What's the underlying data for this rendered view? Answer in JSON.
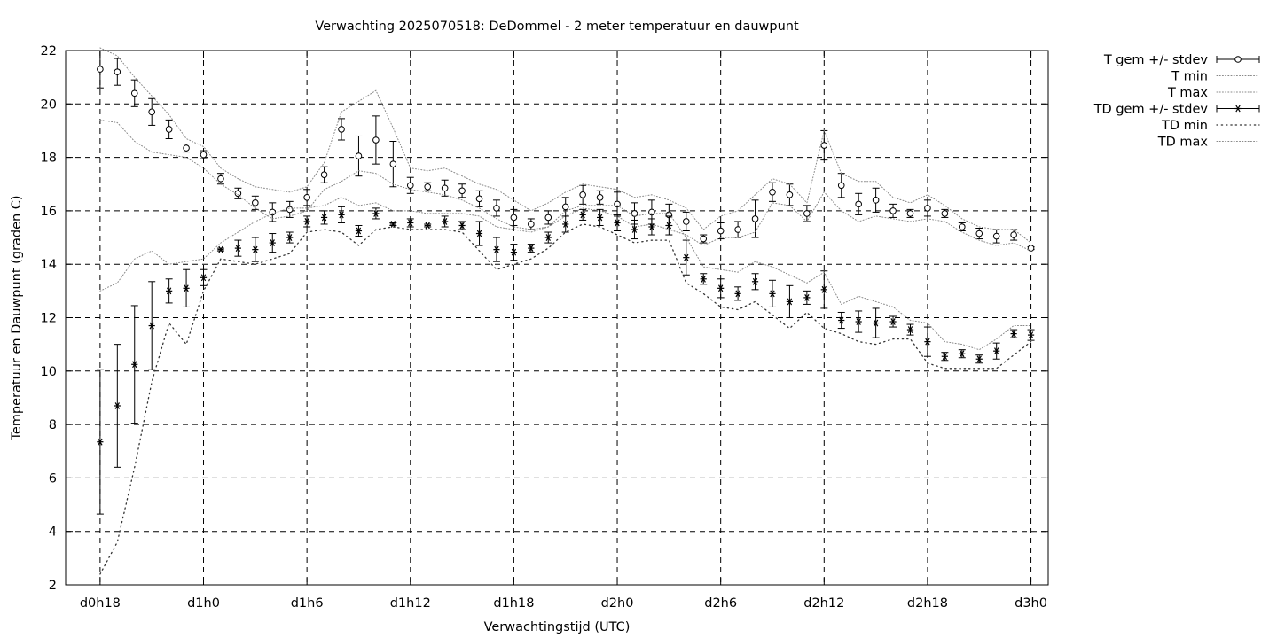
{
  "chart_data": {
    "type": "line",
    "title": "Verwachting 2025070518: DeDommel - 2 meter temperatuur en dauwpunt",
    "xlabel": "Verwachtingstijd (UTC)",
    "ylabel": "Temperatuur en Dauwpunt (graden C)",
    "ylim": [
      2,
      22
    ],
    "xlim": [
      16,
      73
    ],
    "grid": true,
    "legend_position": "right",
    "x_ticks": [
      {
        "x": 18,
        "label": "d0h18"
      },
      {
        "x": 24,
        "label": "d1h0"
      },
      {
        "x": 30,
        "label": "d1h6"
      },
      {
        "x": 36,
        "label": "d1h12"
      },
      {
        "x": 42,
        "label": "d1h18"
      },
      {
        "x": 48,
        "label": "d2h0"
      },
      {
        "x": 54,
        "label": "d2h6"
      },
      {
        "x": 60,
        "label": "d2h12"
      },
      {
        "x": 66,
        "label": "d2h18"
      },
      {
        "x": 72,
        "label": "d3h0"
      }
    ],
    "y_ticks": [
      2,
      4,
      6,
      8,
      10,
      12,
      14,
      16,
      18,
      20,
      22
    ],
    "series": [
      {
        "name": "T gem +/- stdev",
        "style": "errorbar-circle",
        "x": [
          18,
          19,
          20,
          21,
          22,
          23,
          24,
          25,
          26,
          27,
          28,
          29,
          30,
          31,
          32,
          33,
          34,
          35,
          36,
          37,
          38,
          39,
          40,
          41,
          42,
          43,
          44,
          45,
          46,
          47,
          48,
          49,
          50,
          51,
          52,
          53,
          54,
          55,
          56,
          57,
          58,
          59,
          60,
          61,
          62,
          63,
          64,
          65,
          66,
          67,
          68,
          69,
          70,
          71,
          72
        ],
        "y": [
          21.3,
          21.2,
          20.4,
          19.7,
          19.05,
          18.35,
          18.1,
          17.2,
          16.65,
          16.3,
          15.95,
          16.05,
          16.5,
          17.35,
          19.05,
          18.05,
          18.65,
          17.75,
          16.95,
          16.9,
          16.85,
          16.75,
          16.45,
          16.1,
          15.75,
          15.5,
          15.75,
          16.15,
          16.6,
          16.5,
          16.25,
          15.9,
          15.95,
          15.85,
          15.6,
          14.95,
          15.25,
          15.3,
          15.7,
          16.7,
          16.6,
          15.9,
          18.45,
          16.95,
          16.25,
          16.4,
          16.0,
          15.9,
          16.1,
          15.9,
          15.4,
          15.15,
          15.05,
          15.1,
          14.6
        ],
        "stdev": [
          0.7,
          0.5,
          0.5,
          0.5,
          0.35,
          0.15,
          0.15,
          0.2,
          0.2,
          0.25,
          0.35,
          0.3,
          0.3,
          0.3,
          0.4,
          0.75,
          0.9,
          0.85,
          0.3,
          0.15,
          0.3,
          0.25,
          0.3,
          0.3,
          0.3,
          0.2,
          0.25,
          0.35,
          0.35,
          0.25,
          0.45,
          0.4,
          0.45,
          0.4,
          0.35,
          0.15,
          0.3,
          0.3,
          0.7,
          0.35,
          0.4,
          0.3,
          0.55,
          0.45,
          0.4,
          0.45,
          0.25,
          0.15,
          0.3,
          0.15,
          0.15,
          0.2,
          0.25,
          0.2,
          0.05
        ]
      },
      {
        "name": "T min",
        "style": "dotted",
        "x": [
          18,
          19,
          20,
          21,
          22,
          23,
          24,
          25,
          26,
          27,
          28,
          29,
          30,
          31,
          32,
          33,
          34,
          35,
          36,
          37,
          38,
          39,
          40,
          41,
          42,
          43,
          44,
          45,
          46,
          47,
          48,
          49,
          50,
          51,
          52,
          53,
          54,
          55,
          56,
          57,
          58,
          59,
          60,
          61,
          62,
          63,
          64,
          65,
          66,
          67,
          68,
          69,
          70,
          71,
          72
        ],
        "y": [
          19.4,
          19.3,
          18.6,
          18.2,
          18.1,
          18.0,
          17.6,
          17.0,
          16.6,
          16.1,
          15.7,
          15.8,
          16.0,
          16.8,
          17.1,
          17.5,
          17.4,
          17.0,
          16.8,
          16.7,
          16.6,
          16.4,
          16.1,
          15.7,
          15.4,
          15.3,
          15.4,
          15.8,
          16.1,
          16.0,
          15.8,
          15.4,
          15.5,
          15.3,
          15.1,
          14.7,
          15.0,
          15.0,
          15.2,
          16.3,
          16.2,
          15.6,
          16.7,
          16.0,
          15.6,
          15.8,
          15.7,
          15.6,
          15.7,
          15.6,
          15.2,
          14.9,
          14.7,
          14.8,
          14.5
        ]
      },
      {
        "name": "T max",
        "style": "dotted",
        "x": [
          18,
          19,
          20,
          21,
          22,
          23,
          24,
          25,
          26,
          27,
          28,
          29,
          30,
          31,
          32,
          33,
          34,
          35,
          36,
          37,
          38,
          39,
          40,
          41,
          42,
          43,
          44,
          45,
          46,
          47,
          48,
          49,
          50,
          51,
          52,
          53,
          54,
          55,
          56,
          57,
          58,
          59,
          60,
          61,
          62,
          63,
          64,
          65,
          66,
          67,
          68,
          69,
          70,
          71,
          72
        ],
        "y": [
          22.1,
          21.8,
          21.0,
          20.3,
          19.6,
          18.7,
          18.4,
          17.6,
          17.2,
          16.9,
          16.8,
          16.7,
          16.9,
          17.8,
          19.7,
          20.1,
          20.5,
          19.1,
          17.6,
          17.5,
          17.6,
          17.3,
          17.0,
          16.8,
          16.4,
          16.0,
          16.3,
          16.7,
          17.0,
          16.9,
          16.8,
          16.5,
          16.6,
          16.4,
          16.1,
          15.3,
          15.8,
          16.0,
          16.6,
          17.2,
          17.0,
          16.3,
          19.0,
          17.4,
          17.1,
          17.1,
          16.5,
          16.3,
          16.6,
          16.2,
          15.7,
          15.4,
          15.3,
          15.3,
          14.8
        ]
      },
      {
        "name": "TD gem +/- stdev",
        "style": "errorbar-star",
        "x": [
          18,
          19,
          20,
          21,
          22,
          23,
          24,
          25,
          26,
          27,
          28,
          29,
          30,
          31,
          32,
          33,
          34,
          35,
          36,
          37,
          38,
          39,
          40,
          41,
          42,
          43,
          44,
          45,
          46,
          47,
          48,
          49,
          50,
          51,
          52,
          53,
          54,
          55,
          56,
          57,
          58,
          59,
          60,
          61,
          62,
          63,
          64,
          65,
          66,
          67,
          68,
          69,
          70,
          71,
          72
        ],
        "y": [
          7.35,
          8.7,
          10.25,
          11.7,
          13.0,
          13.1,
          13.5,
          14.55,
          14.6,
          14.55,
          14.8,
          15.0,
          15.6,
          15.75,
          15.85,
          15.25,
          15.9,
          15.5,
          15.55,
          15.45,
          15.6,
          15.45,
          15.15,
          14.55,
          14.45,
          14.6,
          15.0,
          15.5,
          15.85,
          15.75,
          15.55,
          15.3,
          15.4,
          15.45,
          14.25,
          13.45,
          13.1,
          12.9,
          13.35,
          12.9,
          12.6,
          12.75,
          13.05,
          11.9,
          11.85,
          11.8,
          11.85,
          11.55,
          11.1,
          10.55,
          10.65,
          10.45,
          10.75,
          11.4,
          11.35
        ],
        "stdev": [
          2.7,
          2.3,
          2.2,
          1.65,
          0.45,
          0.7,
          0.3,
          0.05,
          0.3,
          0.45,
          0.35,
          0.2,
          0.2,
          0.25,
          0.3,
          0.2,
          0.2,
          0.05,
          0.15,
          0.05,
          0.2,
          0.15,
          0.45,
          0.45,
          0.3,
          0.15,
          0.2,
          0.3,
          0.2,
          0.3,
          0.3,
          0.35,
          0.3,
          0.35,
          0.65,
          0.2,
          0.35,
          0.25,
          0.3,
          0.5,
          0.6,
          0.25,
          0.7,
          0.3,
          0.4,
          0.55,
          0.2,
          0.2,
          0.55,
          0.15,
          0.15,
          0.15,
          0.3,
          0.15,
          0.2
        ]
      },
      {
        "name": "TD min",
        "style": "dotted-sparse",
        "x": [
          18,
          19,
          20,
          21,
          22,
          23,
          24,
          25,
          26,
          27,
          28,
          29,
          30,
          31,
          32,
          33,
          34,
          35,
          36,
          37,
          38,
          39,
          40,
          41,
          42,
          43,
          44,
          45,
          46,
          47,
          48,
          49,
          50,
          51,
          52,
          53,
          54,
          55,
          56,
          57,
          58,
          59,
          60,
          61,
          62,
          63,
          64,
          65,
          66,
          67,
          68,
          69,
          70,
          71,
          72
        ],
        "y": [
          2.4,
          3.6,
          6.4,
          9.6,
          11.8,
          11.0,
          13.0,
          14.2,
          14.1,
          14.0,
          14.2,
          14.4,
          15.2,
          15.3,
          15.2,
          14.7,
          15.3,
          15.4,
          15.3,
          15.3,
          15.3,
          15.2,
          14.5,
          13.8,
          14.0,
          14.2,
          14.6,
          15.2,
          15.5,
          15.4,
          15.1,
          14.8,
          14.9,
          14.9,
          13.3,
          12.9,
          12.4,
          12.3,
          12.6,
          12.1,
          11.6,
          12.2,
          11.6,
          11.4,
          11.1,
          11.0,
          11.2,
          11.2,
          10.3,
          10.1,
          10.1,
          10.1,
          10.1,
          10.6,
          11.1
        ]
      },
      {
        "name": "TD max",
        "style": "dotted",
        "x": [
          18,
          19,
          20,
          21,
          22,
          23,
          24,
          25,
          26,
          27,
          28,
          29,
          30,
          31,
          32,
          33,
          34,
          35,
          36,
          37,
          38,
          39,
          40,
          41,
          42,
          43,
          44,
          45,
          46,
          47,
          48,
          49,
          50,
          51,
          52,
          53,
          54,
          55,
          56,
          57,
          58,
          59,
          60,
          61,
          62,
          63,
          64,
          65,
          66,
          67,
          68,
          69,
          70,
          71,
          72
        ],
        "y": [
          13.0,
          13.3,
          14.2,
          14.5,
          14.0,
          14.1,
          14.2,
          14.8,
          15.2,
          15.6,
          15.9,
          16.1,
          16.1,
          16.2,
          16.5,
          16.2,
          16.3,
          16.0,
          16.0,
          15.9,
          15.9,
          15.9,
          15.8,
          15.4,
          15.3,
          15.2,
          15.4,
          16.0,
          16.2,
          16.2,
          16.2,
          15.8,
          15.9,
          15.9,
          15.0,
          13.9,
          13.8,
          13.7,
          14.1,
          13.9,
          13.6,
          13.3,
          13.7,
          12.5,
          12.8,
          12.6,
          12.4,
          11.9,
          11.8,
          11.1,
          11.0,
          10.8,
          11.2,
          11.7,
          11.7
        ]
      }
    ]
  }
}
